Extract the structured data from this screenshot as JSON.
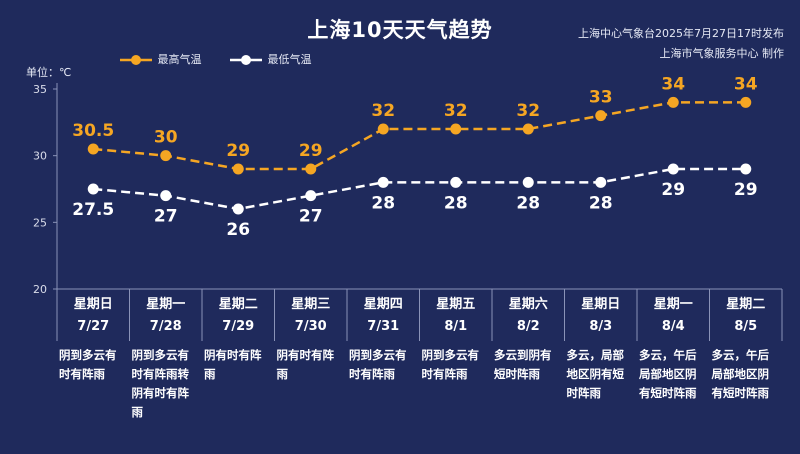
{
  "title": "上海10天天气趋势",
  "source": {
    "line1": "上海中心气象台2025年7月27日17时发布",
    "line2": "上海市气象服务中心 制作"
  },
  "unit_label": "单位：℃",
  "colors": {
    "background": "#1f2a5c",
    "high": "#f5a623",
    "low": "#ffffff",
    "grid": "#8a93b8"
  },
  "chart_data": {
    "type": "line",
    "title": "上海10天天气趋势",
    "x": [
      "7/27",
      "7/28",
      "7/29",
      "7/30",
      "7/31",
      "8/1",
      "8/2",
      "8/3",
      "8/4",
      "8/5"
    ],
    "series": [
      {
        "name": "最高气温",
        "values": [
          30.5,
          30,
          29,
          29,
          32,
          32,
          32,
          33,
          34,
          34
        ]
      },
      {
        "name": "最低气温",
        "values": [
          27.5,
          27,
          26,
          27,
          28,
          28,
          28,
          28,
          29,
          29
        ]
      }
    ],
    "ylabel": "单位：℃",
    "ylim": [
      20,
      35
    ],
    "yticks": [
      20,
      25,
      30,
      35
    ],
    "legend": "top-left",
    "line_style": "dashed"
  },
  "days": [
    {
      "weekday": "星期日",
      "date": "7/27",
      "weather": "阴到多云有时有阵雨"
    },
    {
      "weekday": "星期一",
      "date": "7/28",
      "weather": "阴到多云有时有阵雨转阴有时有阵雨"
    },
    {
      "weekday": "星期二",
      "date": "7/29",
      "weather": "阴有时有阵雨"
    },
    {
      "weekday": "星期三",
      "date": "7/30",
      "weather": "阴有时有阵雨"
    },
    {
      "weekday": "星期四",
      "date": "7/31",
      "weather": "阴到多云有时有阵雨"
    },
    {
      "weekday": "星期五",
      "date": "8/1",
      "weather": "阴到多云有时有阵雨"
    },
    {
      "weekday": "星期六",
      "date": "8/2",
      "weather": "多云到阴有短时阵雨"
    },
    {
      "weekday": "星期日",
      "date": "8/3",
      "weather": "多云，局部地区阴有短时阵雨"
    },
    {
      "weekday": "星期一",
      "date": "8/4",
      "weather": "多云，午后局部地区阴有短时阵雨"
    },
    {
      "weekday": "星期二",
      "date": "8/5",
      "weather": "多云，午后局部地区阴有短时阵雨"
    }
  ]
}
